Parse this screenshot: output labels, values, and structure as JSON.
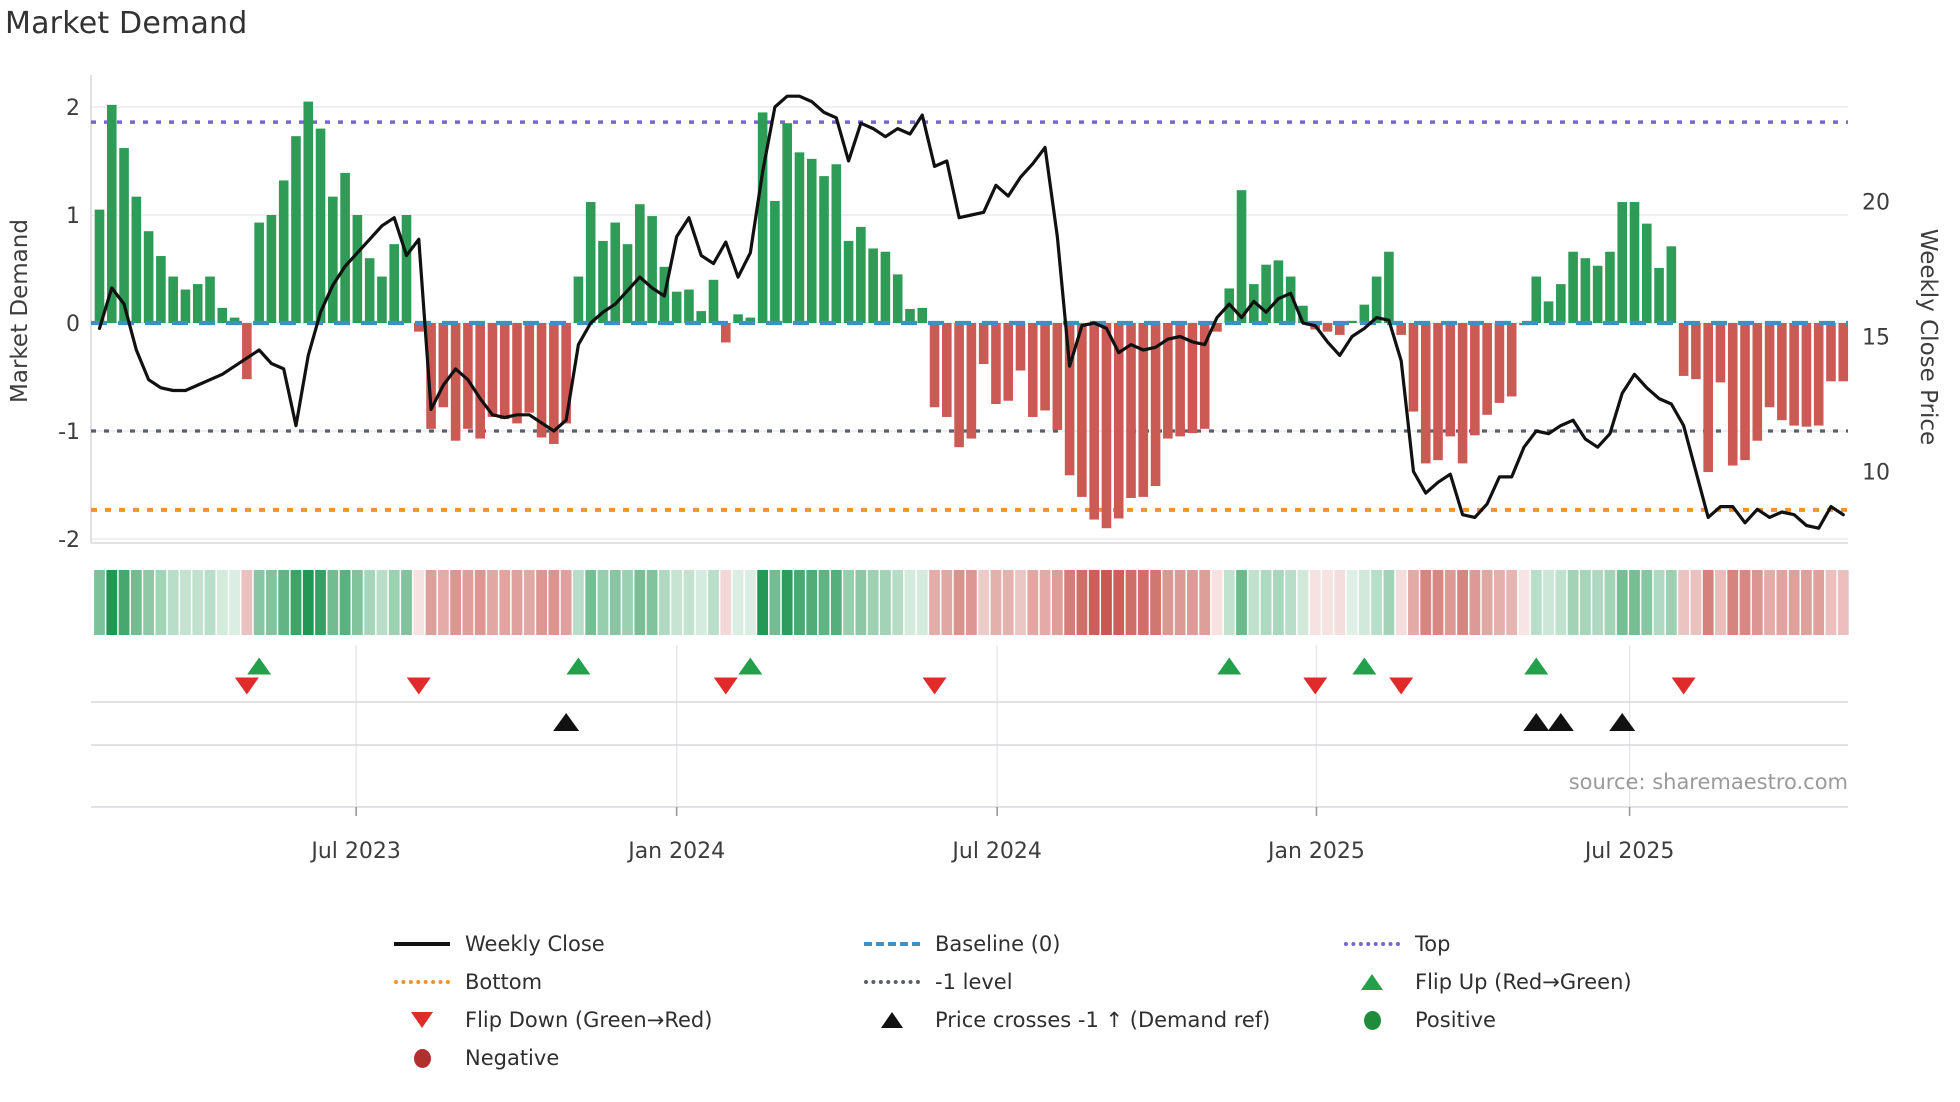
{
  "title": "Market Demand",
  "source": "source: sharemaestro.com",
  "axes": {
    "ylabel_left": "Market Demand",
    "ylabel_right": "Weekly Close Price",
    "yticks_left": [
      2,
      1,
      0,
      -1,
      -2
    ],
    "yticks_right": [
      20,
      15,
      10
    ],
    "x_tick_labels": [
      "Jul 2023",
      "Jan 2024",
      "Jul 2024",
      "Jan 2025",
      "Jul 2025"
    ],
    "x_tick_weeks": [
      20.9,
      47.0,
      73.1,
      99.1,
      124.6
    ]
  },
  "chart_data": {
    "type": "bar+line",
    "title": "Market Demand",
    "xlabel": "",
    "ylabel": "Market Demand",
    "ylabel_right": "Weekly Close Price",
    "ylim_left": [
      -2.2,
      2.3
    ],
    "ylim_right_ticks": [
      10,
      15,
      20
    ],
    "grid": true,
    "legend_position": "bottom",
    "ref_lines": {
      "top": {
        "label": "Top",
        "value": 1.86,
        "color": "#7468d0",
        "style": "dotted"
      },
      "baseline": {
        "label": "Baseline (0)",
        "value": 0,
        "color": "#3f8fc5",
        "style": "dashed"
      },
      "minus1": {
        "label": "-1 level",
        "value": -1,
        "color": "#5a5f6b",
        "style": "dotted"
      },
      "bottom": {
        "label": "Bottom",
        "value": -1.73,
        "color": "#f0932a",
        "style": "dotted"
      }
    },
    "series": [
      {
        "name": "Market Demand",
        "type": "bar",
        "axis": "left",
        "color_positive": "#2e9b57",
        "color_negative": "#cb5a55",
        "values": [
          1.05,
          2.02,
          1.62,
          1.17,
          0.85,
          0.62,
          0.43,
          0.31,
          0.36,
          0.43,
          0.14,
          0.05,
          -0.52,
          0.93,
          1.0,
          1.32,
          1.73,
          2.05,
          1.8,
          1.17,
          1.39,
          1.0,
          0.6,
          0.43,
          0.73,
          1.0,
          -0.08,
          -0.98,
          -0.78,
          -1.09,
          -0.98,
          -1.07,
          -0.87,
          -0.89,
          -0.93,
          -0.83,
          -1.06,
          -1.12,
          -0.93,
          0.43,
          1.12,
          0.76,
          0.93,
          0.73,
          1.1,
          0.99,
          0.52,
          0.29,
          0.31,
          0.11,
          0.4,
          -0.18,
          0.08,
          0.05,
          1.95,
          1.13,
          1.85,
          1.58,
          1.52,
          1.36,
          1.47,
          0.76,
          0.89,
          0.69,
          0.66,
          0.45,
          0.13,
          0.14,
          -0.78,
          -0.87,
          -1.15,
          -1.07,
          -0.38,
          -0.75,
          -0.72,
          -0.44,
          -0.87,
          -0.81,
          -0.99,
          -1.41,
          -1.61,
          -1.82,
          -1.9,
          -1.81,
          -1.62,
          -1.61,
          -1.51,
          -1.07,
          -1.05,
          -1.02,
          -0.98,
          -0.08,
          0.32,
          1.23,
          0.36,
          0.54,
          0.58,
          0.43,
          0.16,
          -0.06,
          -0.08,
          -0.11,
          0.02,
          0.17,
          0.43,
          0.66,
          -0.11,
          -0.82,
          -1.3,
          -1.27,
          -1.05,
          -1.3,
          -1.04,
          -0.85,
          -0.74,
          -0.68,
          -0.02,
          0.43,
          0.2,
          0.36,
          0.66,
          0.6,
          0.53,
          0.66,
          1.12,
          1.12,
          0.92,
          0.51,
          0.71,
          -0.49,
          -0.52,
          -1.38,
          -0.55,
          -1.32,
          -1.27,
          -1.09,
          -0.78,
          -0.9,
          -0.95,
          -0.96,
          -0.95,
          -0.54,
          -0.54
        ]
      },
      {
        "name": "Weekly Close",
        "type": "line",
        "axis": "right",
        "color": "#111111",
        "values": [
          15.3,
          16.8,
          16.2,
          14.5,
          13.4,
          13.1,
          13.0,
          13.0,
          13.2,
          13.4,
          13.6,
          13.9,
          14.2,
          14.5,
          14.0,
          13.8,
          11.7,
          14.3,
          15.9,
          16.9,
          17.6,
          18.1,
          18.6,
          19.1,
          19.4,
          18.0,
          18.6,
          12.3,
          13.2,
          13.8,
          13.4,
          12.7,
          12.1,
          12.0,
          12.1,
          12.1,
          11.8,
          11.5,
          11.9,
          14.7,
          15.5,
          15.9,
          16.2,
          16.7,
          17.2,
          16.8,
          16.5,
          18.7,
          19.4,
          18.0,
          17.7,
          18.5,
          17.2,
          18.1,
          21.1,
          23.5,
          23.9,
          23.9,
          23.7,
          23.3,
          23.1,
          21.5,
          22.9,
          22.7,
          22.4,
          22.7,
          22.5,
          23.2,
          21.3,
          21.5,
          19.4,
          19.5,
          19.6,
          20.6,
          20.2,
          20.9,
          21.4,
          22.0,
          18.7,
          13.9,
          15.4,
          15.5,
          15.3,
          14.4,
          14.7,
          14.5,
          14.6,
          14.9,
          15.0,
          14.8,
          14.7,
          15.7,
          16.2,
          15.7,
          16.3,
          15.9,
          16.4,
          16.6,
          15.5,
          15.4,
          14.8,
          14.3,
          15.0,
          15.3,
          15.7,
          15.6,
          14.1,
          10.0,
          9.2,
          9.6,
          9.9,
          8.4,
          8.3,
          8.8,
          9.8,
          9.8,
          10.9,
          11.5,
          11.4,
          11.7,
          11.9,
          11.2,
          10.9,
          11.4,
          12.9,
          13.6,
          13.1,
          12.7,
          12.5,
          11.7,
          10.0,
          8.3,
          8.7,
          8.7,
          8.1,
          8.6,
          8.3,
          8.5,
          8.4,
          8.0,
          7.9,
          8.7,
          8.4
        ]
      }
    ],
    "heatmap_strip": {
      "description": "weekly demand sign/intensity strip",
      "color_positive": "#22963f",
      "color_negative": "#c5524b",
      "derived_from": "Market Demand bar values"
    },
    "markers": {
      "flip_up": {
        "label": "Flip Up (Red→Green)",
        "color": "#22a04b",
        "weeks": [
          13,
          39,
          53,
          92,
          103,
          117
        ]
      },
      "flip_down": {
        "label": "Flip Down (Green→Red)",
        "color": "#e02b2b",
        "weeks": [
          12,
          26,
          51,
          68,
          99,
          106,
          129
        ]
      },
      "price_cross": {
        "label": "Price crosses -1 ↑ (Demand ref)",
        "color": "#111111",
        "weeks": [
          38,
          117,
          119,
          124
        ]
      }
    }
  },
  "legend": {
    "columns": [
      {
        "items": [
          {
            "swatch": "line-solid-black",
            "label": "Weekly Close"
          },
          {
            "swatch": "dot-orange",
            "label": "Bottom"
          },
          {
            "swatch": "tri-down-red",
            "label": "Flip Down (Green→Red)"
          },
          {
            "swatch": "circle-darkred",
            "label": "Negative"
          }
        ]
      },
      {
        "items": [
          {
            "swatch": "dash-blue",
            "label": "Baseline (0)"
          },
          {
            "swatch": "dot-gray",
            "label": "-1 level"
          },
          {
            "swatch": "tri-up-black",
            "label": "Price crosses -1 ↑ (Demand ref)"
          }
        ]
      },
      {
        "items": [
          {
            "swatch": "dot-purple",
            "label": "Top"
          },
          {
            "swatch": "tri-up-green",
            "label": "Flip Up (Red→Green)"
          },
          {
            "swatch": "circle-green",
            "label": "Positive"
          }
        ]
      }
    ]
  }
}
